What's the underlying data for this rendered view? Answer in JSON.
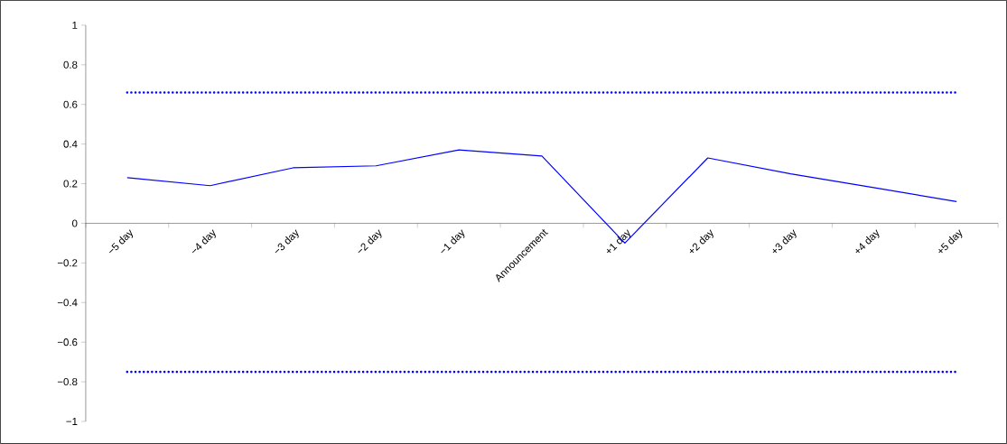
{
  "chart_data": {
    "type": "line",
    "categories": [
      "−5 day",
      "−4 day",
      "−3 day",
      "−2 day",
      "−1 day",
      "Announcement",
      "+1 day",
      "+2 day",
      "+3 day",
      "+4 day",
      "+5 day"
    ],
    "series": [
      {
        "color": "#0000ff",
        "line_style": "solid",
        "values": [
          0.23,
          0.19,
          0.28,
          0.29,
          0.37,
          0.34,
          -0.1,
          0.33,
          0.25,
          0.18,
          0.11
        ]
      },
      {
        "color": "#0000ff",
        "line_style": "dotted",
        "values": [
          0.66,
          0.66,
          0.66,
          0.66,
          0.66,
          0.66,
          0.66,
          0.66,
          0.66,
          0.66,
          0.66
        ]
      },
      {
        "color": "#0000ff",
        "line_style": "dotted",
        "values": [
          -0.75,
          -0.75,
          -0.75,
          -0.75,
          -0.75,
          -0.75,
          -0.75,
          -0.75,
          -0.75,
          -0.75,
          -0.75
        ]
      }
    ],
    "ylim": [
      -1,
      1
    ],
    "yticks": [
      {
        "value": -1,
        "label": "−1"
      },
      {
        "value": -0.8,
        "label": "−0.8"
      },
      {
        "value": -0.6,
        "label": "−0.6"
      },
      {
        "value": -0.4,
        "label": "−0.4"
      },
      {
        "value": -0.2,
        "label": "−0.2"
      },
      0,
      0.2,
      0.4,
      0.6,
      0.8,
      1
    ],
    "grid": false,
    "marker": "none"
  }
}
